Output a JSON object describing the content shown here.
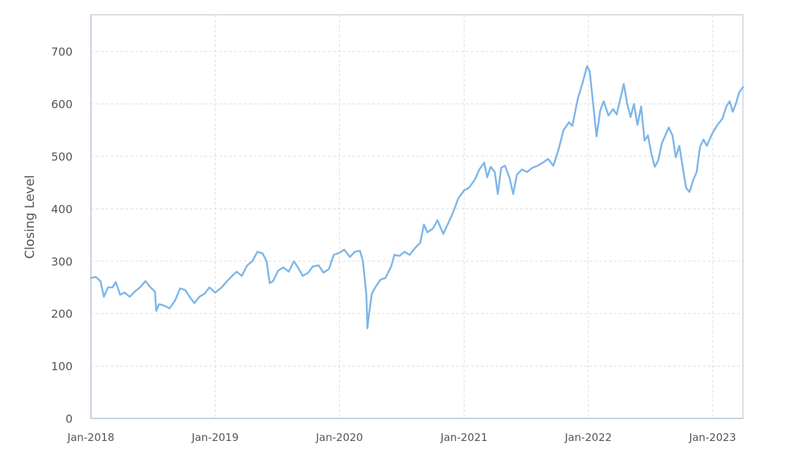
{
  "chart_data": {
    "type": "line",
    "title": "",
    "xlabel": "",
    "ylabel": "Closing Level",
    "ylim": [
      0,
      770
    ],
    "xlim": [
      "2018-01-01",
      "2023-03-31"
    ],
    "y_ticks": [
      0,
      100,
      200,
      300,
      400,
      500,
      600,
      700
    ],
    "x_ticks": [
      {
        "date": "2018-01-01",
        "label": "Jan-2018"
      },
      {
        "date": "2019-01-01",
        "label": "Jan-2019"
      },
      {
        "date": "2020-01-01",
        "label": "Jan-2020"
      },
      {
        "date": "2021-01-01",
        "label": "Jan-2021"
      },
      {
        "date": "2022-01-01",
        "label": "Jan-2022"
      },
      {
        "date": "2023-01-01",
        "label": "Jan-2023"
      }
    ],
    "grid": true,
    "legend": "none",
    "colors": {
      "line": "#7eb6e8",
      "grid": "#dddddd",
      "axis": "#b8c9dc"
    },
    "series": [
      {
        "name": "",
        "points": [
          [
            "2018-01-01",
            268
          ],
          [
            "2018-01-15",
            270
          ],
          [
            "2018-01-29",
            262
          ],
          [
            "2018-02-08",
            232
          ],
          [
            "2018-02-20",
            250
          ],
          [
            "2018-03-05",
            250
          ],
          [
            "2018-03-15",
            260
          ],
          [
            "2018-03-28",
            236
          ],
          [
            "2018-04-10",
            240
          ],
          [
            "2018-04-25",
            232
          ],
          [
            "2018-05-10",
            242
          ],
          [
            "2018-05-25",
            250
          ],
          [
            "2018-06-10",
            262
          ],
          [
            "2018-06-25",
            250
          ],
          [
            "2018-07-08",
            242
          ],
          [
            "2018-07-12",
            205
          ],
          [
            "2018-07-20",
            218
          ],
          [
            "2018-08-05",
            215
          ],
          [
            "2018-08-20",
            210
          ],
          [
            "2018-09-05",
            225
          ],
          [
            "2018-09-20",
            248
          ],
          [
            "2018-10-05",
            245
          ],
          [
            "2018-10-20",
            230
          ],
          [
            "2018-11-01",
            220
          ],
          [
            "2018-11-15",
            232
          ],
          [
            "2018-12-01",
            238
          ],
          [
            "2018-12-15",
            250
          ],
          [
            "2019-01-01",
            240
          ],
          [
            "2019-01-20",
            250
          ],
          [
            "2019-02-05",
            262
          ],
          [
            "2019-02-20",
            272
          ],
          [
            "2019-03-05",
            280
          ],
          [
            "2019-03-20",
            272
          ],
          [
            "2019-04-05",
            292
          ],
          [
            "2019-04-20",
            300
          ],
          [
            "2019-05-05",
            318
          ],
          [
            "2019-05-20",
            315
          ],
          [
            "2019-06-01",
            300
          ],
          [
            "2019-06-10",
            258
          ],
          [
            "2019-06-20",
            262
          ],
          [
            "2019-07-05",
            282
          ],
          [
            "2019-07-20",
            288
          ],
          [
            "2019-08-05",
            280
          ],
          [
            "2019-08-20",
            300
          ],
          [
            "2019-09-01",
            288
          ],
          [
            "2019-09-15",
            272
          ],
          [
            "2019-10-01",
            278
          ],
          [
            "2019-10-15",
            290
          ],
          [
            "2019-11-01",
            292
          ],
          [
            "2019-11-15",
            278
          ],
          [
            "2019-12-01",
            285
          ],
          [
            "2019-12-15",
            312
          ],
          [
            "2020-01-01",
            316
          ],
          [
            "2020-01-15",
            322
          ],
          [
            "2020-02-01",
            308
          ],
          [
            "2020-02-15",
            318
          ],
          [
            "2020-03-01",
            320
          ],
          [
            "2020-03-10",
            300
          ],
          [
            "2020-03-20",
            235
          ],
          [
            "2020-03-23",
            172
          ],
          [
            "2020-03-28",
            200
          ],
          [
            "2020-04-05",
            238
          ],
          [
            "2020-04-15",
            250
          ],
          [
            "2020-05-01",
            265
          ],
          [
            "2020-05-15",
            268
          ],
          [
            "2020-06-01",
            290
          ],
          [
            "2020-06-10",
            312
          ],
          [
            "2020-06-25",
            310
          ],
          [
            "2020-07-10",
            318
          ],
          [
            "2020-07-25",
            312
          ],
          [
            "2020-08-10",
            325
          ],
          [
            "2020-08-25",
            335
          ],
          [
            "2020-09-05",
            370
          ],
          [
            "2020-09-15",
            355
          ],
          [
            "2020-10-01",
            362
          ],
          [
            "2020-10-15",
            378
          ],
          [
            "2020-11-01",
            352
          ],
          [
            "2020-11-15",
            372
          ],
          [
            "2020-12-01",
            395
          ],
          [
            "2020-12-15",
            420
          ],
          [
            "2021-01-01",
            435
          ],
          [
            "2021-01-15",
            440
          ],
          [
            "2021-02-01",
            455
          ],
          [
            "2021-02-15",
            475
          ],
          [
            "2021-03-01",
            488
          ],
          [
            "2021-03-10",
            460
          ],
          [
            "2021-03-20",
            480
          ],
          [
            "2021-04-01",
            470
          ],
          [
            "2021-04-10",
            428
          ],
          [
            "2021-04-20",
            478
          ],
          [
            "2021-05-01",
            482
          ],
          [
            "2021-05-15",
            458
          ],
          [
            "2021-05-25",
            428
          ],
          [
            "2021-06-05",
            465
          ],
          [
            "2021-06-20",
            475
          ],
          [
            "2021-07-05",
            470
          ],
          [
            "2021-07-20",
            478
          ],
          [
            "2021-08-05",
            482
          ],
          [
            "2021-08-20",
            488
          ],
          [
            "2021-09-05",
            495
          ],
          [
            "2021-09-20",
            482
          ],
          [
            "2021-10-05",
            512
          ],
          [
            "2021-10-20",
            550
          ],
          [
            "2021-11-05",
            565
          ],
          [
            "2021-11-15",
            558
          ],
          [
            "2021-12-01",
            610
          ],
          [
            "2021-12-15",
            640
          ],
          [
            "2021-12-28",
            672
          ],
          [
            "2022-01-05",
            662
          ],
          [
            "2022-01-15",
            600
          ],
          [
            "2022-01-25",
            538
          ],
          [
            "2022-02-05",
            588
          ],
          [
            "2022-02-15",
            605
          ],
          [
            "2022-03-01",
            578
          ],
          [
            "2022-03-15",
            590
          ],
          [
            "2022-03-25",
            580
          ],
          [
            "2022-04-05",
            610
          ],
          [
            "2022-04-15",
            638
          ],
          [
            "2022-04-25",
            600
          ],
          [
            "2022-05-05",
            575
          ],
          [
            "2022-05-15",
            600
          ],
          [
            "2022-05-25",
            560
          ],
          [
            "2022-06-05",
            595
          ],
          [
            "2022-06-15",
            530
          ],
          [
            "2022-06-25",
            540
          ],
          [
            "2022-07-05",
            505
          ],
          [
            "2022-07-15",
            480
          ],
          [
            "2022-07-25",
            492
          ],
          [
            "2022-08-05",
            525
          ],
          [
            "2022-08-15",
            540
          ],
          [
            "2022-08-25",
            555
          ],
          [
            "2022-09-05",
            540
          ],
          [
            "2022-09-15",
            498
          ],
          [
            "2022-09-25",
            520
          ],
          [
            "2022-10-05",
            480
          ],
          [
            "2022-10-15",
            440
          ],
          [
            "2022-10-25",
            432
          ],
          [
            "2022-11-05",
            455
          ],
          [
            "2022-11-15",
            470
          ],
          [
            "2022-11-25",
            518
          ],
          [
            "2022-12-05",
            532
          ],
          [
            "2022-12-15",
            520
          ],
          [
            "2023-01-01",
            545
          ],
          [
            "2023-01-15",
            560
          ],
          [
            "2023-01-30",
            572
          ],
          [
            "2023-02-10",
            595
          ],
          [
            "2023-02-20",
            605
          ],
          [
            "2023-03-01",
            585
          ],
          [
            "2023-03-10",
            600
          ],
          [
            "2023-03-20",
            622
          ],
          [
            "2023-03-31",
            632
          ]
        ]
      }
    ]
  }
}
